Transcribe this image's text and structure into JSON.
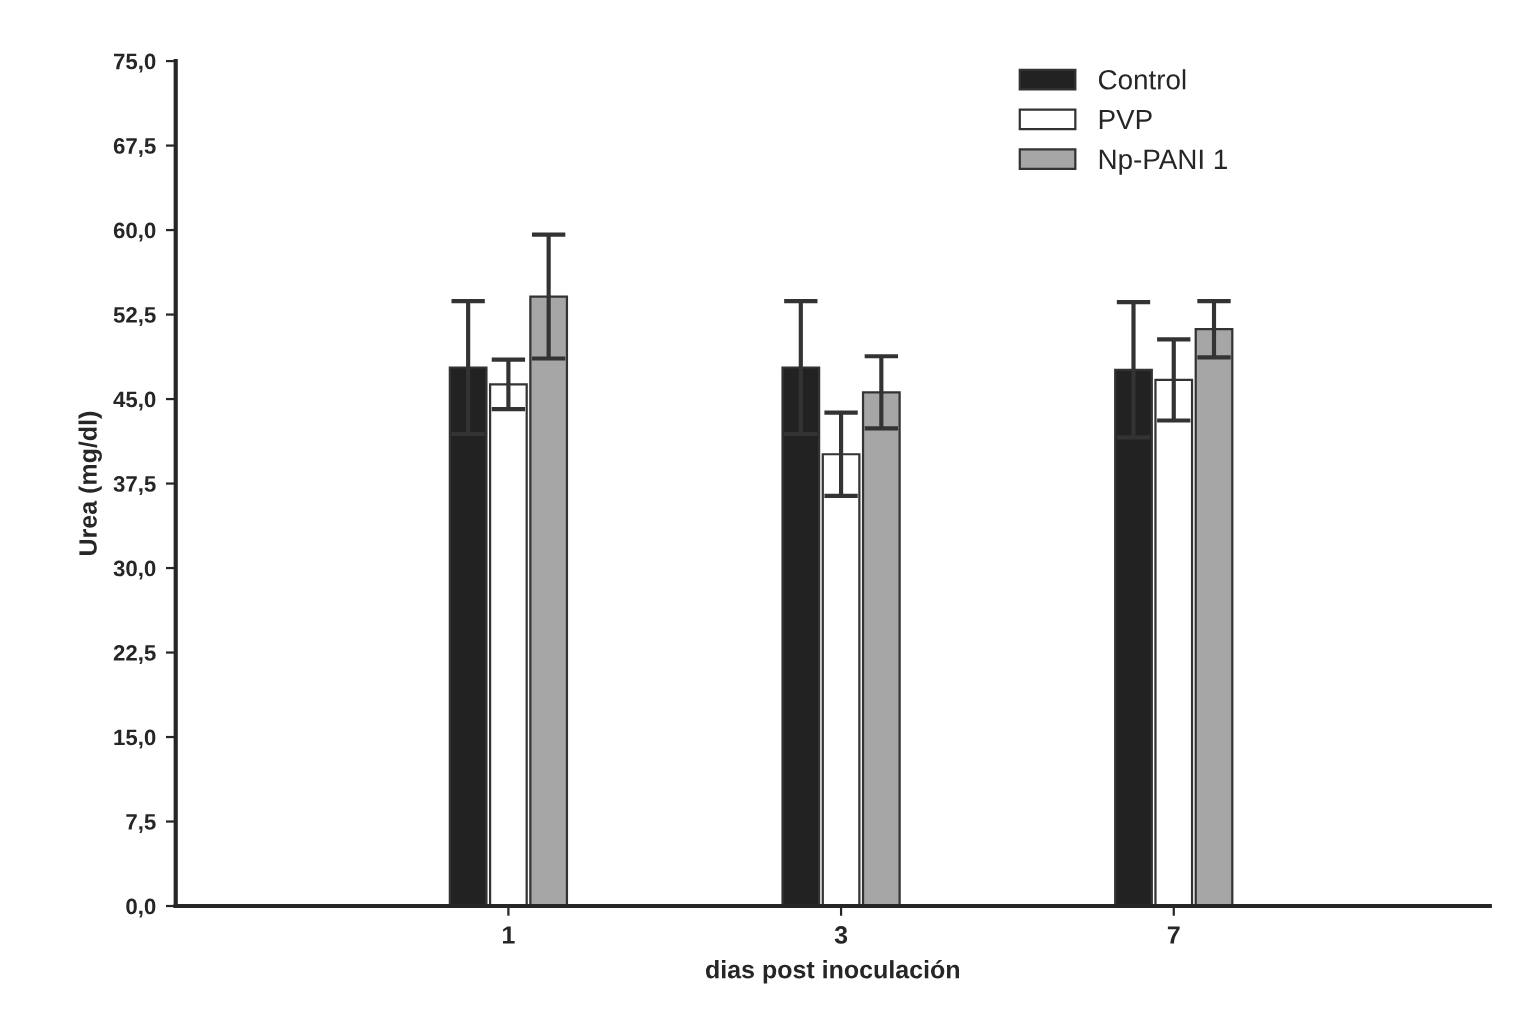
{
  "chart_data": {
    "type": "bar",
    "xlabel": "dias post inoculación",
    "ylabel": "Urea (mg/dl)",
    "categories": [
      "1",
      "3",
      "7"
    ],
    "series": [
      {
        "name": "Control",
        "color": "#222222",
        "values": [
          47.8,
          47.8,
          47.6
        ],
        "errors": [
          5.9,
          5.9,
          6.0
        ]
      },
      {
        "name": "PVP",
        "color": "#ffffff",
        "values": [
          46.3,
          40.1,
          46.7
        ],
        "errors": [
          2.2,
          3.7,
          3.6
        ]
      },
      {
        "name": "Np-PANI 1",
        "color": "#a6a6a6",
        "values": [
          54.1,
          45.6,
          51.2
        ],
        "errors": [
          5.5,
          3.2,
          2.5
        ]
      }
    ],
    "ylim": [
      0,
      75
    ],
    "yticks": [
      {
        "value": 0,
        "label": "0,0"
      },
      {
        "value": 7.5,
        "label": "7,5"
      },
      {
        "value": 15,
        "label": "15,0"
      },
      {
        "value": 22.5,
        "label": "22,5"
      },
      {
        "value": 30,
        "label": "30,0"
      },
      {
        "value": 37.5,
        "label": "37,5"
      },
      {
        "value": 45,
        "label": "45,0"
      },
      {
        "value": 52.5,
        "label": "52,5"
      },
      {
        "value": 60,
        "label": "60,0"
      },
      {
        "value": 67.5,
        "label": "67,5"
      },
      {
        "value": 75,
        "label": "75,0"
      }
    ],
    "grid": false,
    "legend": "top right"
  }
}
